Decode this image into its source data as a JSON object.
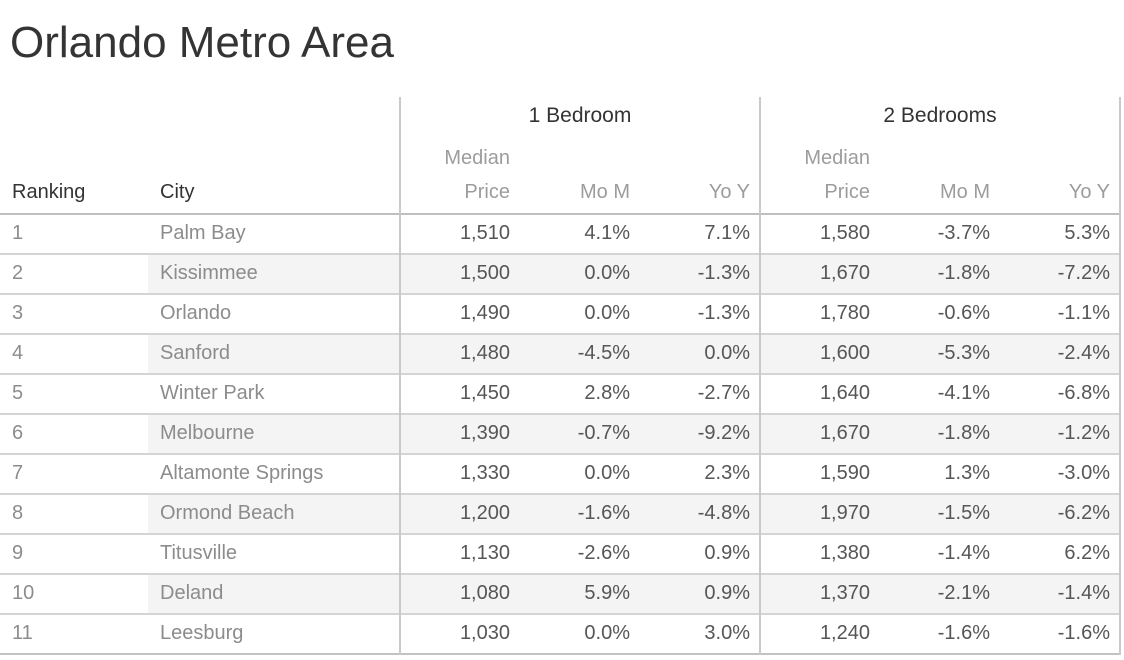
{
  "title": "Orlando Metro Area",
  "labels": {
    "ranking_header": "Ranking",
    "city_header": "City",
    "group1": "1 Bedroom",
    "group2": "2 Bedrooms",
    "median_price_wrapped": "Median\nPrice",
    "mom": "Mo M",
    "yoy": "Yo Y"
  },
  "chart_data": {
    "type": "table",
    "title": "Orlando Metro Area",
    "row_header_columns": [
      "Ranking",
      "City"
    ],
    "column_groups": [
      {
        "label": "1 Bedroom",
        "columns": [
          "Median Price",
          "Mo M",
          "Yo Y"
        ]
      },
      {
        "label": "2 Bedrooms",
        "columns": [
          "Median Price",
          "Mo M",
          "Yo Y"
        ]
      }
    ],
    "rows": [
      {
        "ranking": "1",
        "city": "Palm Bay",
        "bed1_median_price": "1,510",
        "bed1_mom": "4.1%",
        "bed1_yoy": "7.1%",
        "bed2_median_price": "1,580",
        "bed2_mom": "-3.7%",
        "bed2_yoy": "5.3%"
      },
      {
        "ranking": "2",
        "city": "Kissimmee",
        "bed1_median_price": "1,500",
        "bed1_mom": "0.0%",
        "bed1_yoy": "-1.3%",
        "bed2_median_price": "1,670",
        "bed2_mom": "-1.8%",
        "bed2_yoy": "-7.2%"
      },
      {
        "ranking": "3",
        "city": "Orlando",
        "bed1_median_price": "1,490",
        "bed1_mom": "0.0%",
        "bed1_yoy": "-1.3%",
        "bed2_median_price": "1,780",
        "bed2_mom": "-0.6%",
        "bed2_yoy": "-1.1%"
      },
      {
        "ranking": "4",
        "city": "Sanford",
        "bed1_median_price": "1,480",
        "bed1_mom": "-4.5%",
        "bed1_yoy": "0.0%",
        "bed2_median_price": "1,600",
        "bed2_mom": "-5.3%",
        "bed2_yoy": "-2.4%"
      },
      {
        "ranking": "5",
        "city": "Winter Park",
        "bed1_median_price": "1,450",
        "bed1_mom": "2.8%",
        "bed1_yoy": "-2.7%",
        "bed2_median_price": "1,640",
        "bed2_mom": "-4.1%",
        "bed2_yoy": "-6.8%"
      },
      {
        "ranking": "6",
        "city": "Melbourne",
        "bed1_median_price": "1,390",
        "bed1_mom": "-0.7%",
        "bed1_yoy": "-9.2%",
        "bed2_median_price": "1,670",
        "bed2_mom": "-1.8%",
        "bed2_yoy": "-1.2%"
      },
      {
        "ranking": "7",
        "city": "Altamonte Springs",
        "bed1_median_price": "1,330",
        "bed1_mom": "0.0%",
        "bed1_yoy": "2.3%",
        "bed2_median_price": "1,590",
        "bed2_mom": "1.3%",
        "bed2_yoy": "-3.0%"
      },
      {
        "ranking": "8",
        "city": "Ormond Beach",
        "bed1_median_price": "1,200",
        "bed1_mom": "-1.6%",
        "bed1_yoy": "-4.8%",
        "bed2_median_price": "1,970",
        "bed2_mom": "-1.5%",
        "bed2_yoy": "-6.2%"
      },
      {
        "ranking": "9",
        "city": "Titusville",
        "bed1_median_price": "1,130",
        "bed1_mom": "-2.6%",
        "bed1_yoy": "0.9%",
        "bed2_median_price": "1,380",
        "bed2_mom": "-1.4%",
        "bed2_yoy": "6.2%"
      },
      {
        "ranking": "10",
        "city": "Deland",
        "bed1_median_price": "1,080",
        "bed1_mom": "5.9%",
        "bed1_yoy": "0.9%",
        "bed2_median_price": "1,370",
        "bed2_mom": "-2.1%",
        "bed2_yoy": "-1.4%"
      },
      {
        "ranking": "11",
        "city": "Leesburg",
        "bed1_median_price": "1,030",
        "bed1_mom": "0.0%",
        "bed1_yoy": "3.0%",
        "bed2_median_price": "1,240",
        "bed2_mom": "-1.6%",
        "bed2_yoy": "-1.6%"
      }
    ]
  },
  "colors": {
    "title_text": "#343434",
    "header_text": "#333333",
    "subheader_text": "#9c9c9c",
    "row_label_text": "#8c8c8c",
    "value_text": "#565656",
    "row_band": "#f4f4f4",
    "row_divider": "#d4d4d4",
    "grid_line": "#c9c9c9",
    "header_rule": "#bfbfbf"
  }
}
